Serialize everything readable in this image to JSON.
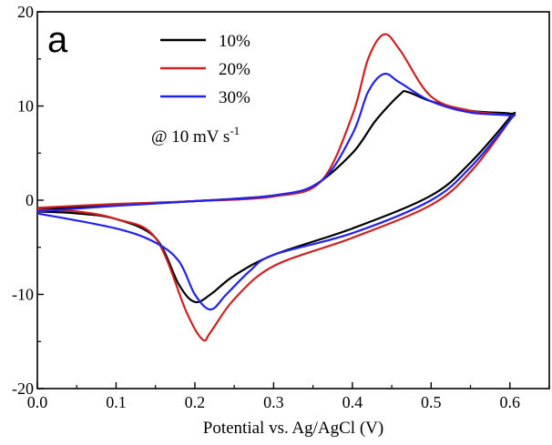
{
  "chart_data": {
    "type": "line",
    "panel_label": "a",
    "xlabel": "Potential vs. Ag/AgCl (V)",
    "ylabel": "",
    "xlim": [
      0.0,
      0.65
    ],
    "ylim": [
      -20,
      20
    ],
    "xticks": [
      "0.0",
      "0.1",
      "0.2",
      "0.3",
      "0.4",
      "0.5",
      "0.6"
    ],
    "xtick_values": [
      0.0,
      0.1,
      0.2,
      0.3,
      0.4,
      0.5,
      0.6
    ],
    "yticks": [
      "-20",
      "-10",
      "0",
      "10",
      "20"
    ],
    "ytick_values": [
      -20,
      -10,
      0,
      10,
      20
    ],
    "grid": false,
    "legend_position": "top-center",
    "annotation": {
      "main": "@ 10 mV s",
      "sup": "-1"
    },
    "series": [
      {
        "name": "10%",
        "color": "#000000",
        "x": [
          0.0,
          0.1,
          0.2,
          0.3,
          0.35,
          0.4,
          0.43,
          0.46,
          0.47,
          0.5,
          0.55,
          0.6,
          0.6,
          0.55,
          0.5,
          0.4,
          0.3,
          0.25,
          0.22,
          0.2,
          0.18,
          0.15,
          0.1,
          0.05,
          0.0
        ],
        "y": [
          -1.0,
          -0.5,
          -0.1,
          0.5,
          1.5,
          5.0,
          8.5,
          11.2,
          11.5,
          10.5,
          9.5,
          9.2,
          8.8,
          4.0,
          0.5,
          -3.0,
          -5.8,
          -8.0,
          -10.0,
          -10.8,
          -9.0,
          -4.0,
          -2.0,
          -1.4,
          -1.2
        ]
      },
      {
        "name": "20%",
        "color": "#cc2222",
        "x": [
          0.0,
          0.1,
          0.2,
          0.3,
          0.36,
          0.4,
          0.42,
          0.44,
          0.46,
          0.5,
          0.55,
          0.6,
          0.6,
          0.55,
          0.5,
          0.4,
          0.3,
          0.25,
          0.22,
          0.21,
          0.19,
          0.15,
          0.1,
          0.05,
          0.0
        ],
        "y": [
          -0.8,
          -0.4,
          -0.1,
          0.4,
          2.0,
          9.0,
          15.0,
          17.6,
          16.0,
          11.0,
          9.5,
          9.0,
          8.5,
          3.0,
          -0.5,
          -4.0,
          -7.0,
          -10.5,
          -14.0,
          -14.8,
          -12.0,
          -4.0,
          -2.0,
          -1.2,
          -1.0
        ]
      },
      {
        "name": "30%",
        "color": "#2222ee",
        "x": [
          0.0,
          0.1,
          0.2,
          0.3,
          0.36,
          0.4,
          0.42,
          0.44,
          0.46,
          0.5,
          0.55,
          0.6,
          0.6,
          0.55,
          0.5,
          0.4,
          0.3,
          0.27,
          0.24,
          0.22,
          0.2,
          0.18,
          0.15,
          0.1,
          0.0
        ],
        "y": [
          -1.2,
          -0.6,
          -0.1,
          0.5,
          2.0,
          7.0,
          11.5,
          13.4,
          12.5,
          10.5,
          9.3,
          9.0,
          8.5,
          3.5,
          0.0,
          -3.5,
          -5.8,
          -7.5,
          -10.0,
          -11.6,
          -10.0,
          -6.5,
          -4.5,
          -3.0,
          -1.4
        ]
      }
    ]
  }
}
